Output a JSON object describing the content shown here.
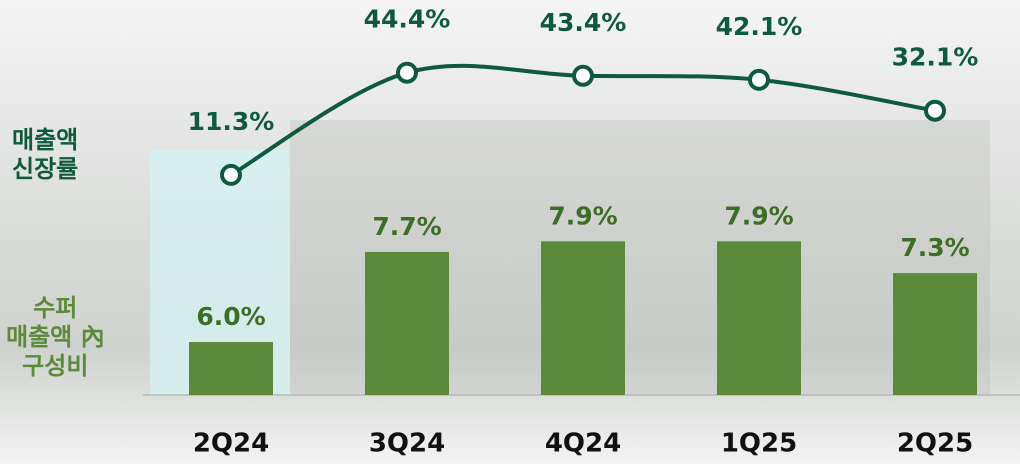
{
  "chart_data": {
    "type": "combo",
    "categories": [
      "2Q24",
      "3Q24",
      "4Q24",
      "1Q25",
      "2Q25"
    ],
    "series": [
      {
        "name": "수퍼\n매출액 內\n구성비",
        "type": "bar",
        "color": "#5b8a3a",
        "values": [
          6.0,
          7.7,
          7.9,
          7.9,
          7.3
        ],
        "value_labels": [
          "6.0%",
          "7.7%",
          "7.9%",
          "7.9%",
          "7.3%"
        ]
      },
      {
        "name": "매출액\n신장률",
        "type": "line",
        "axis": "y2",
        "color": "#0f5a3e",
        "values": [
          11.3,
          44.4,
          43.4,
          42.1,
          32.1
        ],
        "value_labels": [
          "11.3%",
          "44.4%",
          "43.4%",
          "42.1%",
          "32.1%"
        ]
      }
    ],
    "ylim": [
      5,
      11.7
    ],
    "y2lim": [
      -60,
      55
    ]
  }
}
